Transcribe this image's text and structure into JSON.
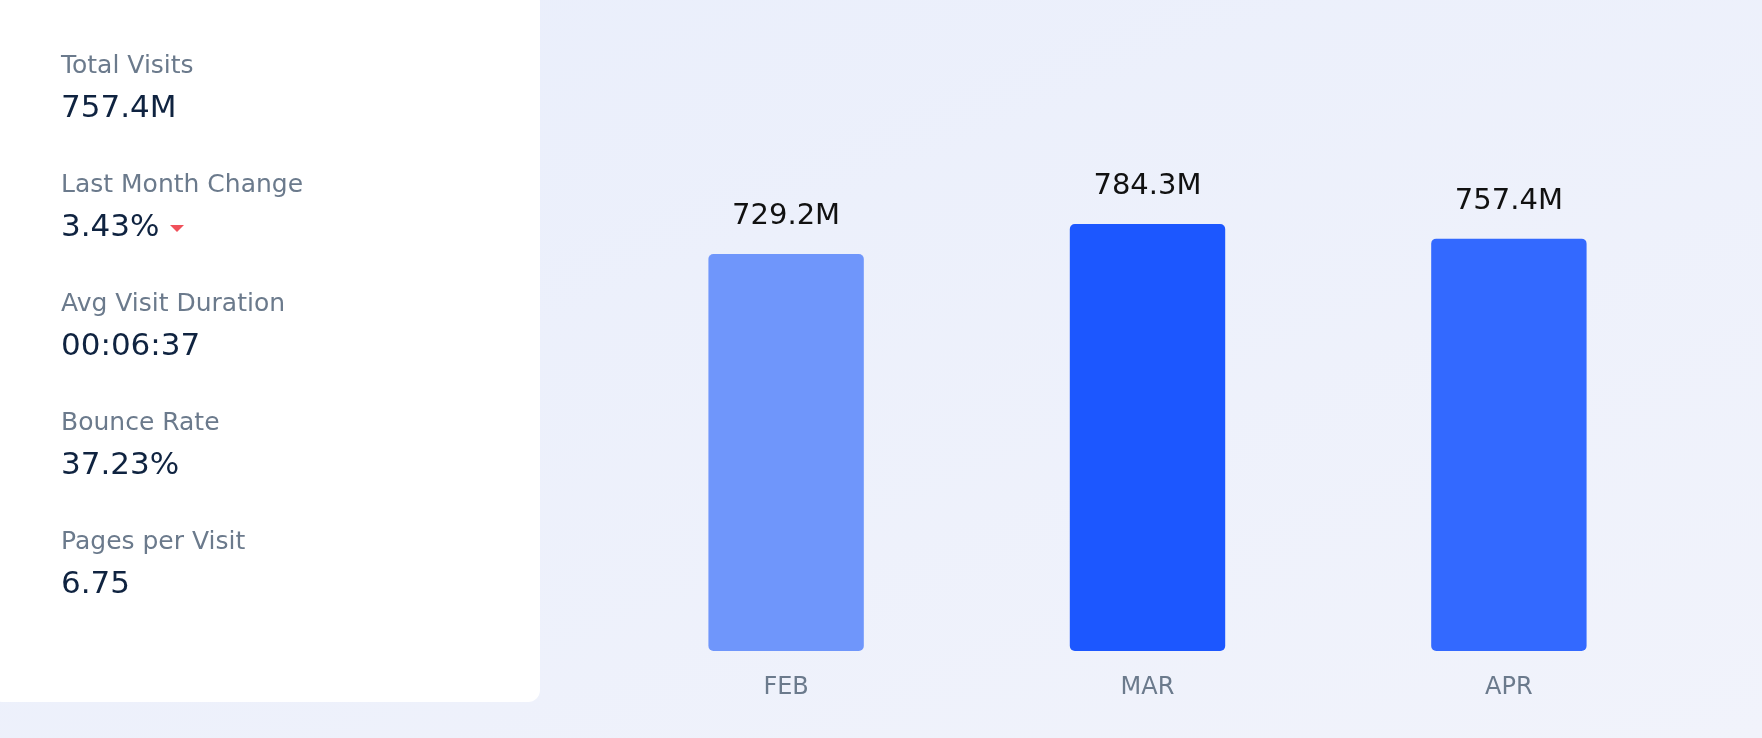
{
  "chart_data": [
    {
      "type": "other",
      "annotations": [
        "Total Visits",
        "757.4M",
        "Last Month Change",
        "3.43%",
        "Avg Visit Duration",
        "00:06:37",
        "Bounce Rate",
        "37.23%",
        "Pages per Visit",
        "6.75"
      ]
    },
    {
      "type": "bar",
      "categories": [
        "FEB",
        "MAR",
        "APR"
      ],
      "values": [
        729.2,
        784.3,
        757.4
      ],
      "colors": [
        "#6f96fb",
        "#1c57ff",
        "#3369ff"
      ],
      "value_labels": [
        "729.2M",
        "784.3M",
        "757.4M"
      ]
    }
  ]
}
